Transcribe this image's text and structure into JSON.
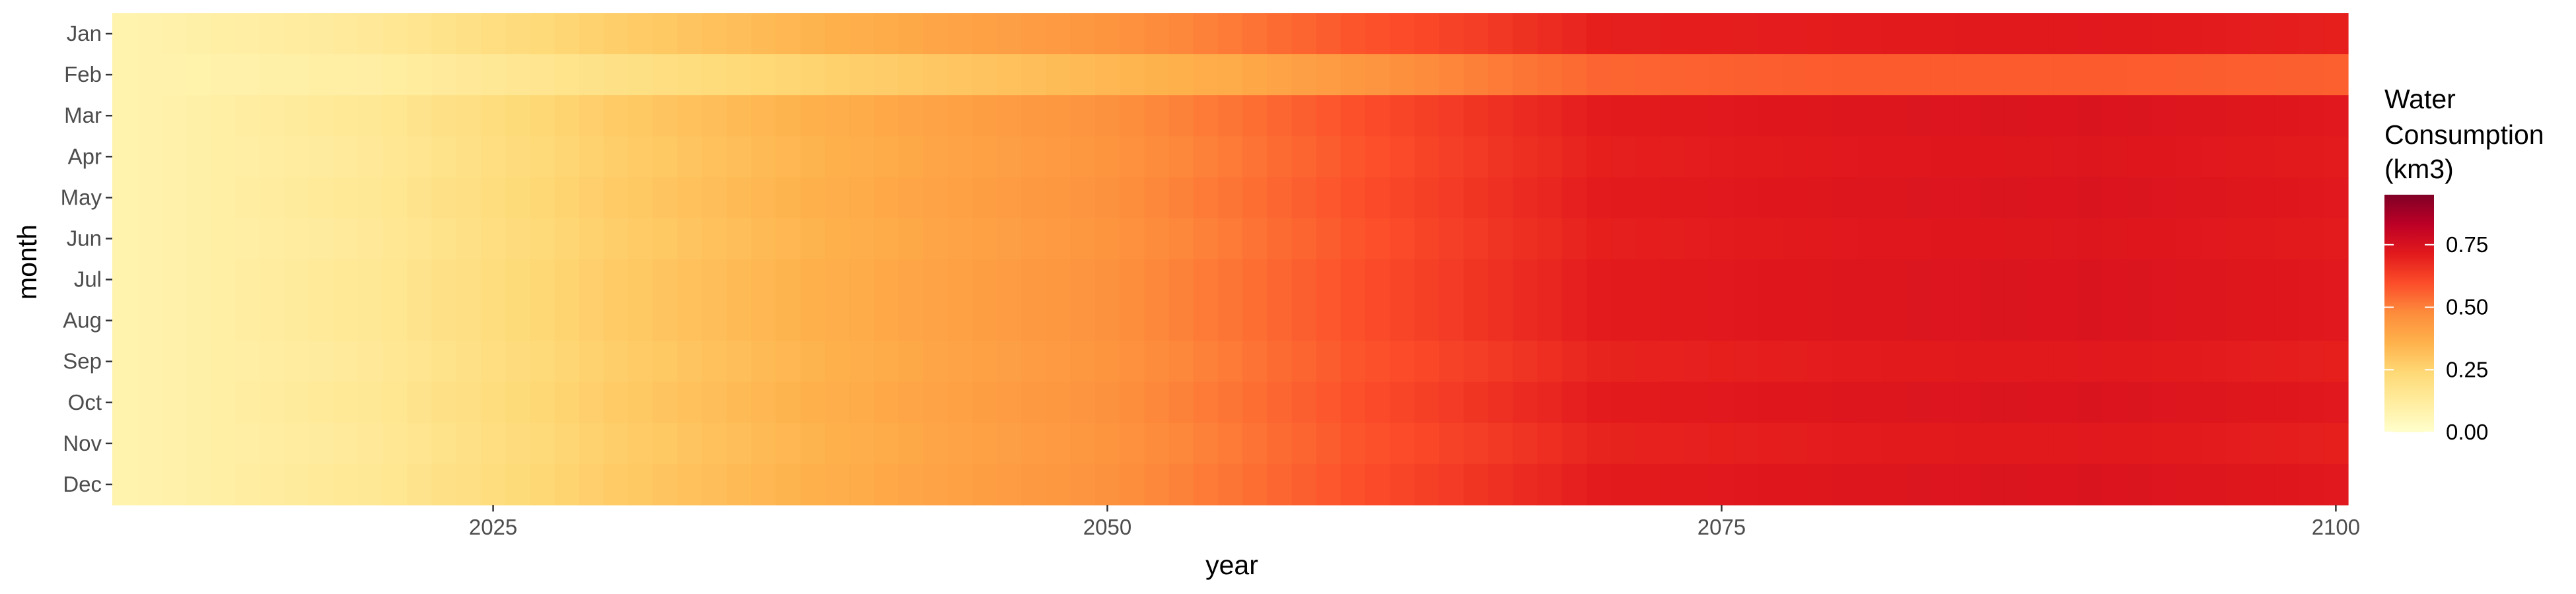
{
  "chart_data": {
    "type": "heatmap",
    "title": "",
    "xlabel": "year",
    "ylabel": "month",
    "x_range": [
      2010,
      2100
    ],
    "x_ticks": [
      2025,
      2050,
      2075,
      2100
    ],
    "y_categories": [
      "Jan",
      "Feb",
      "Mar",
      "Apr",
      "May",
      "Jun",
      "Jul",
      "Aug",
      "Sep",
      "Oct",
      "Nov",
      "Dec"
    ],
    "value_anchor_years": [
      2010,
      2020,
      2030,
      2040,
      2050,
      2055,
      2060,
      2065,
      2070,
      2080,
      2090,
      2100
    ],
    "series": [
      {
        "name": "Jan",
        "values": [
          0.08,
          0.14,
          0.27,
          0.37,
          0.45,
          0.51,
          0.58,
          0.63,
          0.7,
          0.71,
          0.72,
          0.7
        ]
      },
      {
        "name": "Feb",
        "values": [
          0.08,
          0.11,
          0.19,
          0.27,
          0.34,
          0.38,
          0.44,
          0.5,
          0.55,
          0.57,
          0.57,
          0.56
        ]
      },
      {
        "name": "Mar",
        "values": [
          0.08,
          0.15,
          0.28,
          0.38,
          0.46,
          0.52,
          0.59,
          0.65,
          0.71,
          0.73,
          0.74,
          0.72
        ]
      },
      {
        "name": "Apr",
        "values": [
          0.08,
          0.14,
          0.27,
          0.37,
          0.45,
          0.51,
          0.58,
          0.64,
          0.7,
          0.72,
          0.73,
          0.71
        ]
      },
      {
        "name": "May",
        "values": [
          0.08,
          0.15,
          0.28,
          0.38,
          0.46,
          0.52,
          0.59,
          0.65,
          0.71,
          0.73,
          0.74,
          0.72
        ]
      },
      {
        "name": "Jun",
        "values": [
          0.08,
          0.14,
          0.27,
          0.37,
          0.45,
          0.51,
          0.58,
          0.64,
          0.7,
          0.72,
          0.73,
          0.71
        ]
      },
      {
        "name": "Jul",
        "values": [
          0.08,
          0.15,
          0.28,
          0.38,
          0.46,
          0.52,
          0.59,
          0.65,
          0.71,
          0.73,
          0.74,
          0.72
        ]
      },
      {
        "name": "Aug",
        "values": [
          0.08,
          0.15,
          0.28,
          0.38,
          0.46,
          0.52,
          0.59,
          0.65,
          0.71,
          0.73,
          0.74,
          0.72
        ]
      },
      {
        "name": "Sep",
        "values": [
          0.08,
          0.14,
          0.27,
          0.37,
          0.45,
          0.51,
          0.58,
          0.63,
          0.69,
          0.71,
          0.72,
          0.7
        ]
      },
      {
        "name": "Oct",
        "values": [
          0.08,
          0.15,
          0.28,
          0.38,
          0.46,
          0.52,
          0.59,
          0.65,
          0.71,
          0.73,
          0.74,
          0.72
        ]
      },
      {
        "name": "Nov",
        "values": [
          0.08,
          0.14,
          0.27,
          0.37,
          0.45,
          0.51,
          0.58,
          0.63,
          0.69,
          0.71,
          0.72,
          0.7
        ]
      },
      {
        "name": "Dec",
        "values": [
          0.08,
          0.15,
          0.28,
          0.38,
          0.46,
          0.52,
          0.59,
          0.65,
          0.71,
          0.73,
          0.74,
          0.72
        ]
      }
    ],
    "legend": {
      "title_lines": [
        "Water",
        "Consumption",
        "(km3)"
      ],
      "range": [
        0,
        0.95
      ],
      "ticks": [
        0.0,
        0.25,
        0.5,
        0.75
      ],
      "tick_labels": [
        "0.00",
        "0.25",
        "0.50",
        "0.75"
      ],
      "placement": "right"
    },
    "colorscale": [
      [
        0.0,
        "#ffffcc"
      ],
      [
        0.125,
        "#ffeda0"
      ],
      [
        0.25,
        "#fed976"
      ],
      [
        0.375,
        "#feb24c"
      ],
      [
        0.5,
        "#fd8d3c"
      ],
      [
        0.625,
        "#fc4e2a"
      ],
      [
        0.75,
        "#e31a1c"
      ],
      [
        0.875,
        "#bd0026"
      ],
      [
        1.0,
        "#800026"
      ]
    ],
    "grid": false
  }
}
